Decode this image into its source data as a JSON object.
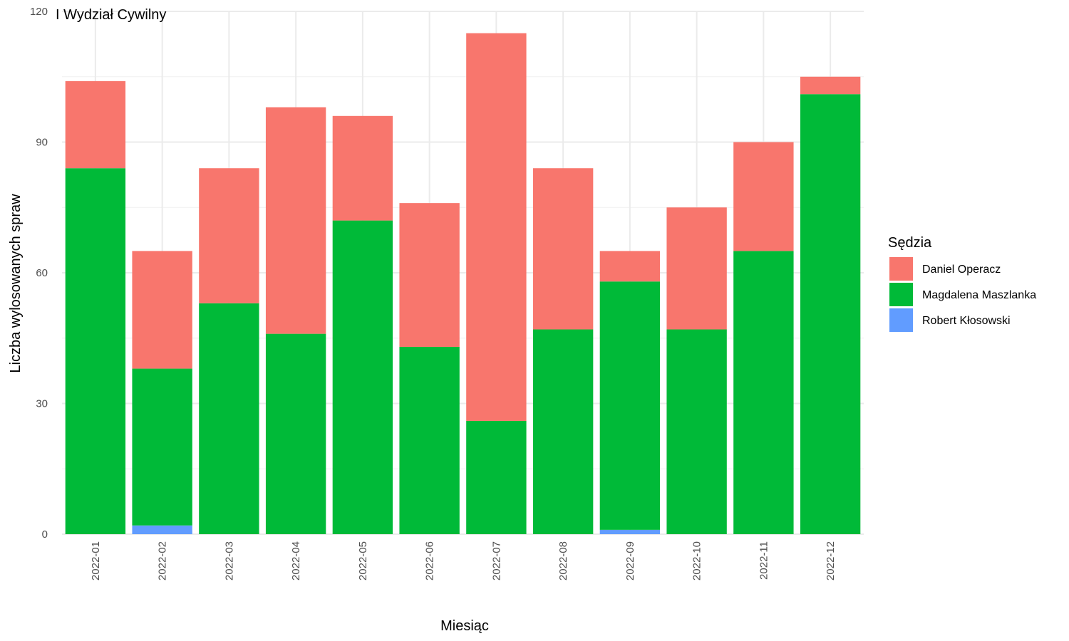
{
  "chart_data": {
    "type": "bar",
    "stacked": true,
    "title": "I Wydział Cywilny",
    "xlabel": "Miesiąc",
    "ylabel": "Liczba wylosowanych spraw",
    "ylim": [
      0,
      120
    ],
    "yticks": [
      0,
      30,
      60,
      90,
      120
    ],
    "grid": true,
    "legend_position": "right",
    "legend_title": "Sędzia",
    "categories": [
      "2022-01",
      "2022-02",
      "2022-03",
      "2022-04",
      "2022-05",
      "2022-06",
      "2022-07",
      "2022-08",
      "2022-09",
      "2022-10",
      "2022-11",
      "2022-12"
    ],
    "series": [
      {
        "name": "Daniel Operacz",
        "color": "#F8766D",
        "values": [
          20,
          27,
          31,
          52,
          24,
          33,
          89,
          37,
          7,
          28,
          25,
          4
        ]
      },
      {
        "name": "Magdalena Maszlanka",
        "color": "#00BA38",
        "values": [
          84,
          36,
          53,
          46,
          72,
          43,
          26,
          47,
          57,
          47,
          65,
          101
        ]
      },
      {
        "name": "Robert Kłosowski",
        "color": "#619CFF",
        "values": [
          0,
          2,
          0,
          0,
          0,
          0,
          0,
          0,
          1,
          0,
          0,
          0
        ]
      }
    ]
  }
}
